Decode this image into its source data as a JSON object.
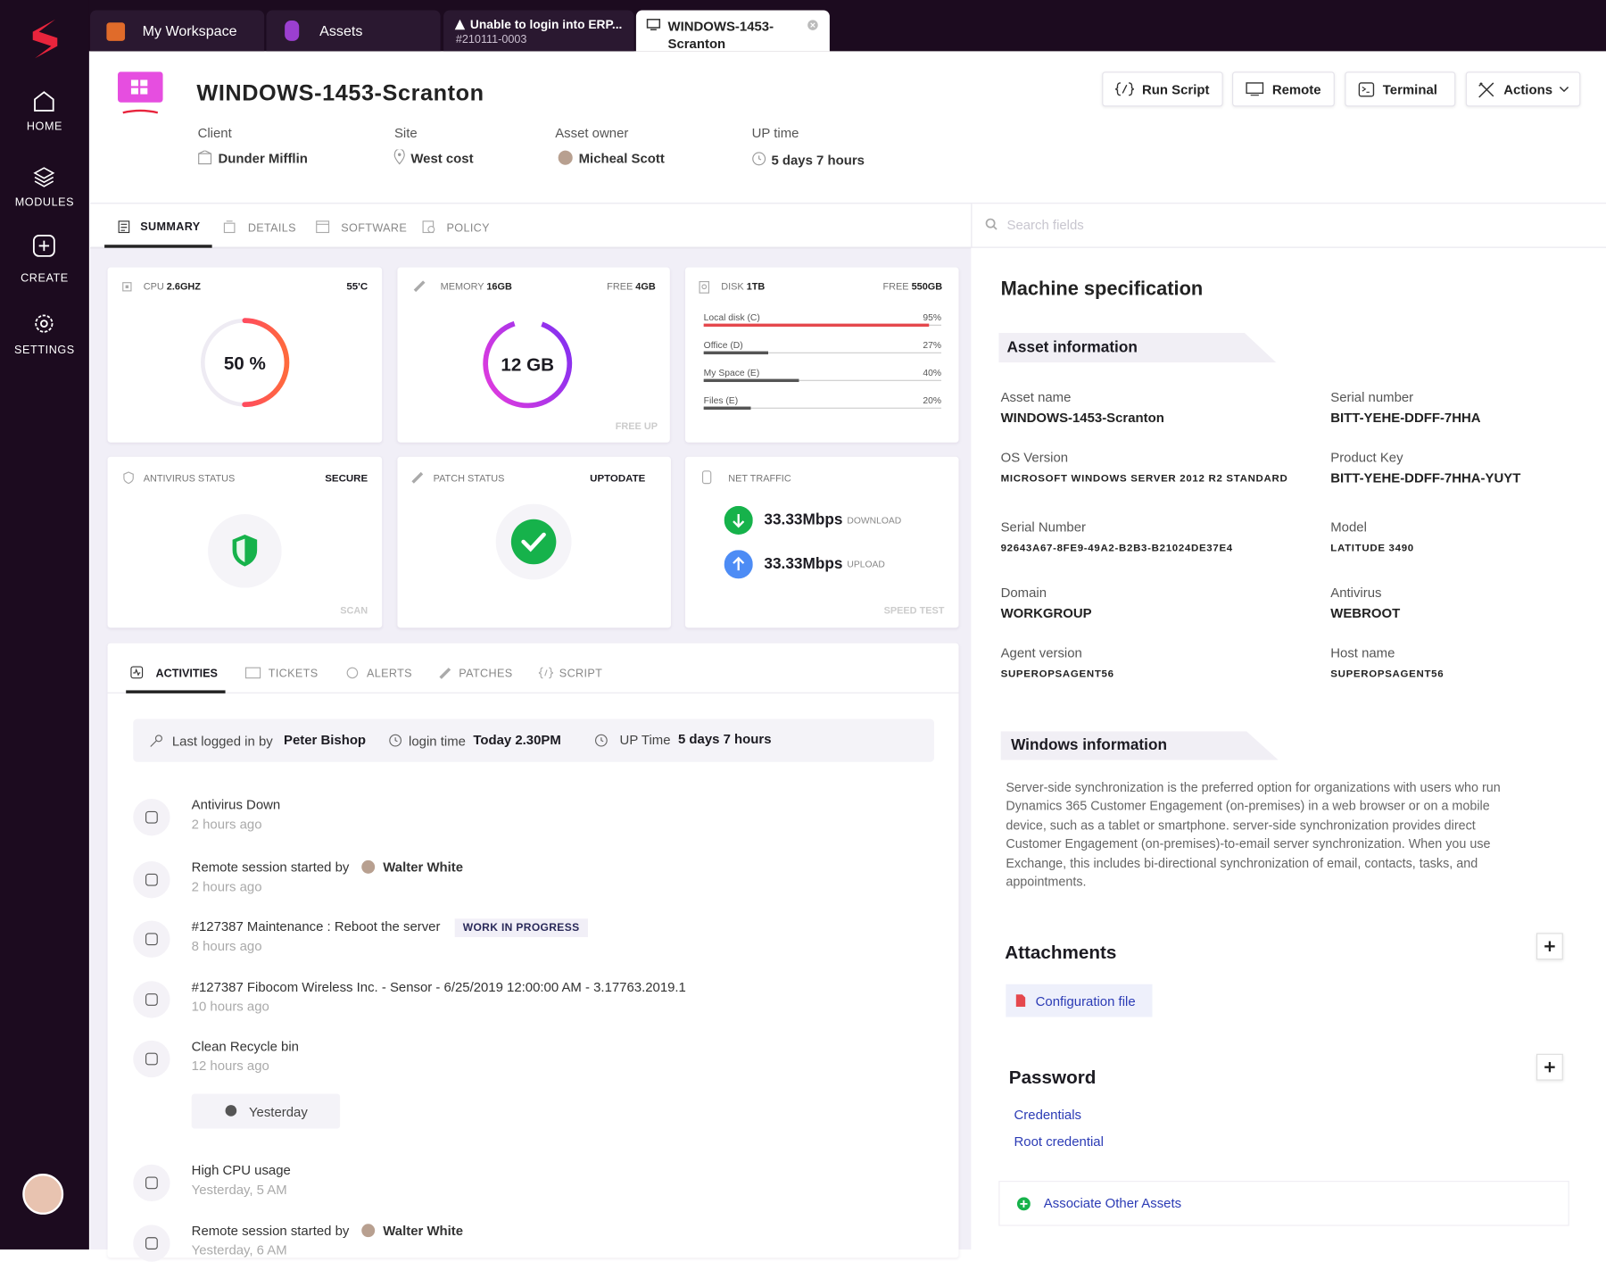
{
  "sidebar": {
    "nav": [
      "HOME",
      "MODULES",
      "CREATE",
      "SETTINGS"
    ]
  },
  "tabs": [
    {
      "label": "My Workspace"
    },
    {
      "label": "Assets"
    },
    {
      "label": "Unable to login into ERP...",
      "sub": "#210111-0003"
    },
    {
      "label": "WINDOWS-1453-Scranton"
    }
  ],
  "header": {
    "title": "WINDOWS-1453-Scranton",
    "actions": [
      "Run Script",
      "Remote",
      "Terminal",
      "Actions"
    ],
    "fields": [
      {
        "label": "Client",
        "value": "Dunder Mifflin"
      },
      {
        "label": "Site",
        "value": "West cost"
      },
      {
        "label": "Asset owner",
        "value": "Micheal Scott"
      },
      {
        "label": "UP time",
        "value": "5 days 7 hours"
      }
    ]
  },
  "subtabs": [
    "SUMMARY",
    "DETAILS",
    "SOFTWARE",
    "POLICY"
  ],
  "search_placeholder": "Search fields",
  "cards": {
    "cpu": {
      "label": "CPU",
      "value": "2.6GHZ",
      "temp": "55'C",
      "usage": "50 %"
    },
    "memory": {
      "label": "MEMORY",
      "value": "16GB",
      "free_label": "FREE",
      "free": "4GB",
      "used": "12 GB",
      "action": "FREE UP"
    },
    "disk": {
      "label": "DISK",
      "value": "1TB",
      "free_label": "FREE",
      "free": "550GB",
      "drives": [
        {
          "name": "Local disk (C)",
          "usage": "95%"
        },
        {
          "name": "Office (D)",
          "usage": "27%"
        },
        {
          "name": "My Space (E)",
          "usage": "40%"
        },
        {
          "name": "Files (E)",
          "usage": "20%"
        }
      ]
    },
    "antivirus": {
      "label": "ANTIVIRUS STATUS",
      "status": "SECURE",
      "action": "SCAN"
    },
    "patch": {
      "label": "PATCH STATUS",
      "status": "UPTODATE"
    },
    "net": {
      "label": "NET TRAFFIC",
      "download": "33.33Mbps",
      "download_label": "DOWNLOAD",
      "upload": "33.33Mbps",
      "upload_label": "UPLOAD",
      "action": "SPEED TEST"
    }
  },
  "activity_tabs": [
    "ACTIVITIES",
    "TICKETS",
    "ALERTS",
    "PATCHES",
    "SCRIPT"
  ],
  "login_bar": {
    "last_logged_label": "Last logged in by",
    "last_logged": "Peter Bishop",
    "login_time_label": "login time",
    "login_time": "Today 2.30PM",
    "uptime_label": "UP Time",
    "uptime": "5 days 7 hours"
  },
  "activities": [
    {
      "title": "Antivirus Down",
      "time": "2 hours ago"
    },
    {
      "title": "Remote session started by",
      "user": "Walter White",
      "time": "2 hours ago"
    },
    {
      "title": "#127387  Maintenance : Reboot the server",
      "badge": "WORK IN PROGRESS",
      "time": "8 hours ago"
    },
    {
      "title": "#127387  Fibocom Wireless Inc. - Sensor - 6/25/2019 12:00:00 AM - 3.17763.2019.1",
      "time": "10 hours ago"
    },
    {
      "title": "Clean Recycle bin",
      "time": "12 hours ago"
    }
  ],
  "divider": "Yesterday",
  "activities_yesterday": [
    {
      "title": "High CPU usage",
      "time": "Yesterday, 5 AM"
    },
    {
      "title": "Remote session started by",
      "user": "Walter White",
      "time": "Yesterday, 6 AM"
    }
  ],
  "spec": {
    "title": "Machine specification",
    "asset_info": {
      "heading": "Asset information",
      "fields": [
        {
          "label": "Asset name",
          "value": "WINDOWS-1453-Scranton"
        },
        {
          "label": "Serial number",
          "value": "BITT-YEHE-DDFF-7HHA"
        },
        {
          "label": "OS Version",
          "value": "MICROSOFT WINDOWS SERVER 2012 R2 STANDARD"
        },
        {
          "label": "Product Key",
          "value": "BITT-YEHE-DDFF-7HHA-YUYT"
        },
        {
          "label": "Serial Number",
          "value": "92643A67-8FE9-49A2-B2B3-B21024DE37E4"
        },
        {
          "label": "Model",
          "value": "LATITUDE 3490"
        },
        {
          "label": "Domain",
          "value": "WORKGROUP"
        },
        {
          "label": "Antivirus",
          "value": "WEBROOT"
        },
        {
          "label": "Agent version",
          "value": "SUPEROPSAGENT56"
        },
        {
          "label": "Host name",
          "value": "SUPEROPSAGENT56"
        }
      ]
    },
    "windows_info": {
      "heading": "Windows information",
      "text": "Server-side synchronization is the preferred option for organizations with users who run Dynamics 365 Customer Engagement (on-premises) in a web browser or on a mobile device, such as a tablet or smartphone. server-side synchronization provides direct Customer Engagement (on-premises)-to-email server synchronization. When you use Exchange, this includes bi-directional synchronization of email, contacts, tasks, and appointments."
    }
  },
  "attachments": {
    "heading": "Attachments",
    "files": [
      "Configuration file"
    ]
  },
  "password": {
    "heading": "Password",
    "items": [
      "Credentials",
      "Root credential"
    ]
  },
  "associate": "Associate Other Assets"
}
